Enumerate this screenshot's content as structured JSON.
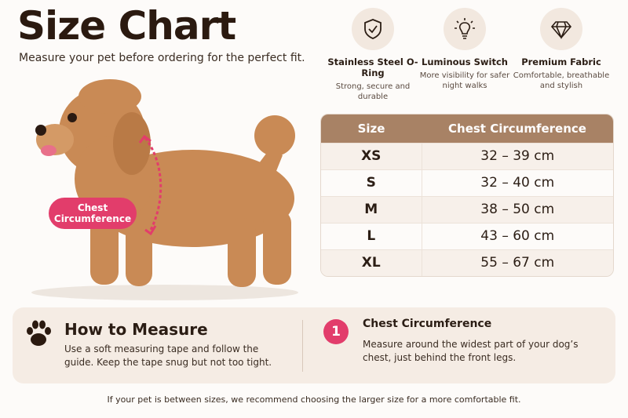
{
  "header": {
    "title": "Size Chart",
    "subtitle": "Measure your pet before ordering for the perfect fit."
  },
  "features": [
    {
      "title": "Stainless Steel O-Ring",
      "description": "Strong, secure and durable"
    },
    {
      "title": "Luminous Switch",
      "description": "More visibility for safer night walks"
    },
    {
      "title": "Premium Fabric",
      "description": "Comfortable, breathable and stylish"
    }
  ],
  "dog_label": "Chest Circumference",
  "table": {
    "header": [
      "Size",
      "Chest Circumference"
    ],
    "rows": [
      [
        "XS",
        "32 – 39 cm"
      ],
      [
        "S",
        "32 – 40 cm"
      ],
      [
        "M",
        "38 – 50 cm"
      ],
      [
        "L",
        "43 – 60 cm"
      ],
      [
        "XL",
        "55 – 67 cm"
      ]
    ]
  },
  "how_to": {
    "title": "How to Measure",
    "text": "Use a soft measuring tape and follow the guide. Keep the tape snug but not too tight."
  },
  "step": {
    "number": "1",
    "title": "Chest Circumference",
    "text": "Measure around the widest part of your dog’s chest, just behind the front legs."
  },
  "footnote": "If your pet is between sizes, we recommend choosing the larger size for a more comfortable fit."
}
